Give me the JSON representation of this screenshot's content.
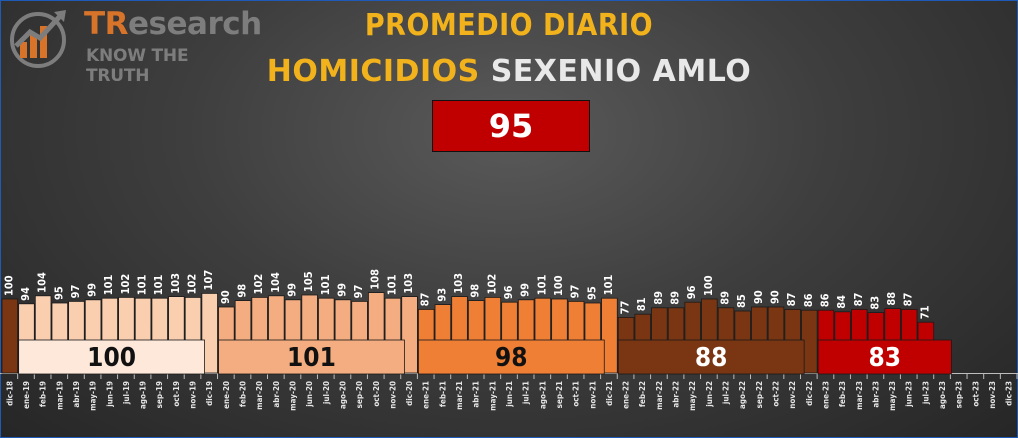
{
  "logo": {
    "brand_tr": "TR",
    "brand_rest": "esearch",
    "tagline": "KNOW THE TRUTH"
  },
  "title": {
    "line1": "PROMEDIO DIARIO",
    "line2_a": "HOMICIDIOS",
    "line2_b": "SEXENIO AMLO"
  },
  "overall_average": "95",
  "colors": {
    "dec18": "#7a3612",
    "y2019": "#f9cfb0",
    "y2020": "#f4ad80",
    "y2021": "#ef7f35",
    "y2022": "#7a3612",
    "y2023": "#c00000",
    "annual_2019_box": "#fde8da",
    "annual_2020_box": "#f4ad80",
    "annual_2021_box": "#ef7f35",
    "annual_2022_box": "#7a3612",
    "annual_2023_box": "#c00000"
  },
  "chart_data": {
    "type": "bar",
    "categories": [
      "dic-18",
      "ene-19",
      "feb-19",
      "mar-19",
      "abr-19",
      "may-19",
      "jun-19",
      "jul-19",
      "ago-19",
      "sep-19",
      "oct-19",
      "nov-19",
      "dic-19",
      "ene-20",
      "feb-20",
      "mar-20",
      "abr-20",
      "may-20",
      "jun-20",
      "jul-20",
      "ago-20",
      "sep-20",
      "oct-20",
      "nov-20",
      "dic-20",
      "ene-21",
      "feb-21",
      "mar-21",
      "abr-21",
      "may-21",
      "jun-21",
      "jul-21",
      "ago-21",
      "sep-21",
      "oct-21",
      "nov-21",
      "dic-21",
      "ene-22",
      "feb-22",
      "mar-22",
      "abr-22",
      "may-22",
      "jun-22",
      "jul-22",
      "ago-22",
      "sep-22",
      "oct-22",
      "nov-22",
      "dic-22",
      "ene-23",
      "feb-23",
      "mar-23",
      "abr-23",
      "may-23",
      "jun-23",
      "jul-23",
      "ago-23",
      "sep-23",
      "oct-23",
      "nov-23",
      "dic-23"
    ],
    "values": [
      100,
      94,
      104,
      95,
      97,
      99,
      101,
      102,
      101,
      101,
      103,
      102,
      107,
      90,
      98,
      102,
      104,
      99,
      105,
      101,
      99,
      97,
      108,
      101,
      103,
      87,
      93,
      103,
      98,
      102,
      96,
      99,
      101,
      100,
      97,
      95,
      101,
      77,
      81,
      89,
      89,
      96,
      100,
      89,
      85,
      90,
      90,
      87,
      86,
      86,
      84,
      87,
      83,
      88,
      87,
      71,
      null,
      null,
      null,
      null,
      null
    ],
    "series_color_groups": [
      "dec18",
      "y2019",
      "y2019",
      "y2019",
      "y2019",
      "y2019",
      "y2019",
      "y2019",
      "y2019",
      "y2019",
      "y2019",
      "y2019",
      "y2019",
      "y2020",
      "y2020",
      "y2020",
      "y2020",
      "y2020",
      "y2020",
      "y2020",
      "y2020",
      "y2020",
      "y2020",
      "y2020",
      "y2020",
      "y2021",
      "y2021",
      "y2021",
      "y2021",
      "y2021",
      "y2021",
      "y2021",
      "y2021",
      "y2021",
      "y2021",
      "y2021",
      "y2021",
      "y2022",
      "y2022",
      "y2022",
      "y2022",
      "y2022",
      "y2022",
      "y2022",
      "y2022",
      "y2022",
      "y2022",
      "y2022",
      "y2022",
      "y2023",
      "y2023",
      "y2023",
      "y2023",
      "y2023",
      "y2023",
      "y2023",
      "y2023",
      "y2023",
      "y2023",
      "y2023",
      "y2023"
    ],
    "annual_averages": [
      {
        "year": "2019",
        "value": "100",
        "color_key": "annual_2019_box",
        "text_color": "#111111"
      },
      {
        "year": "2020",
        "value": "101",
        "color_key": "annual_2020_box",
        "text_color": "#111111"
      },
      {
        "year": "2021",
        "value": "98",
        "color_key": "annual_2021_box",
        "text_color": "#111111"
      },
      {
        "year": "2022",
        "value": "88",
        "color_key": "annual_2022_box",
        "text_color": "#ffffff"
      },
      {
        "year": "2023",
        "value": "83",
        "color_key": "annual_2023_box",
        "text_color": "#ffffff"
      }
    ],
    "ylim": [
      0,
      130
    ],
    "grid": false,
    "legend": "none"
  }
}
